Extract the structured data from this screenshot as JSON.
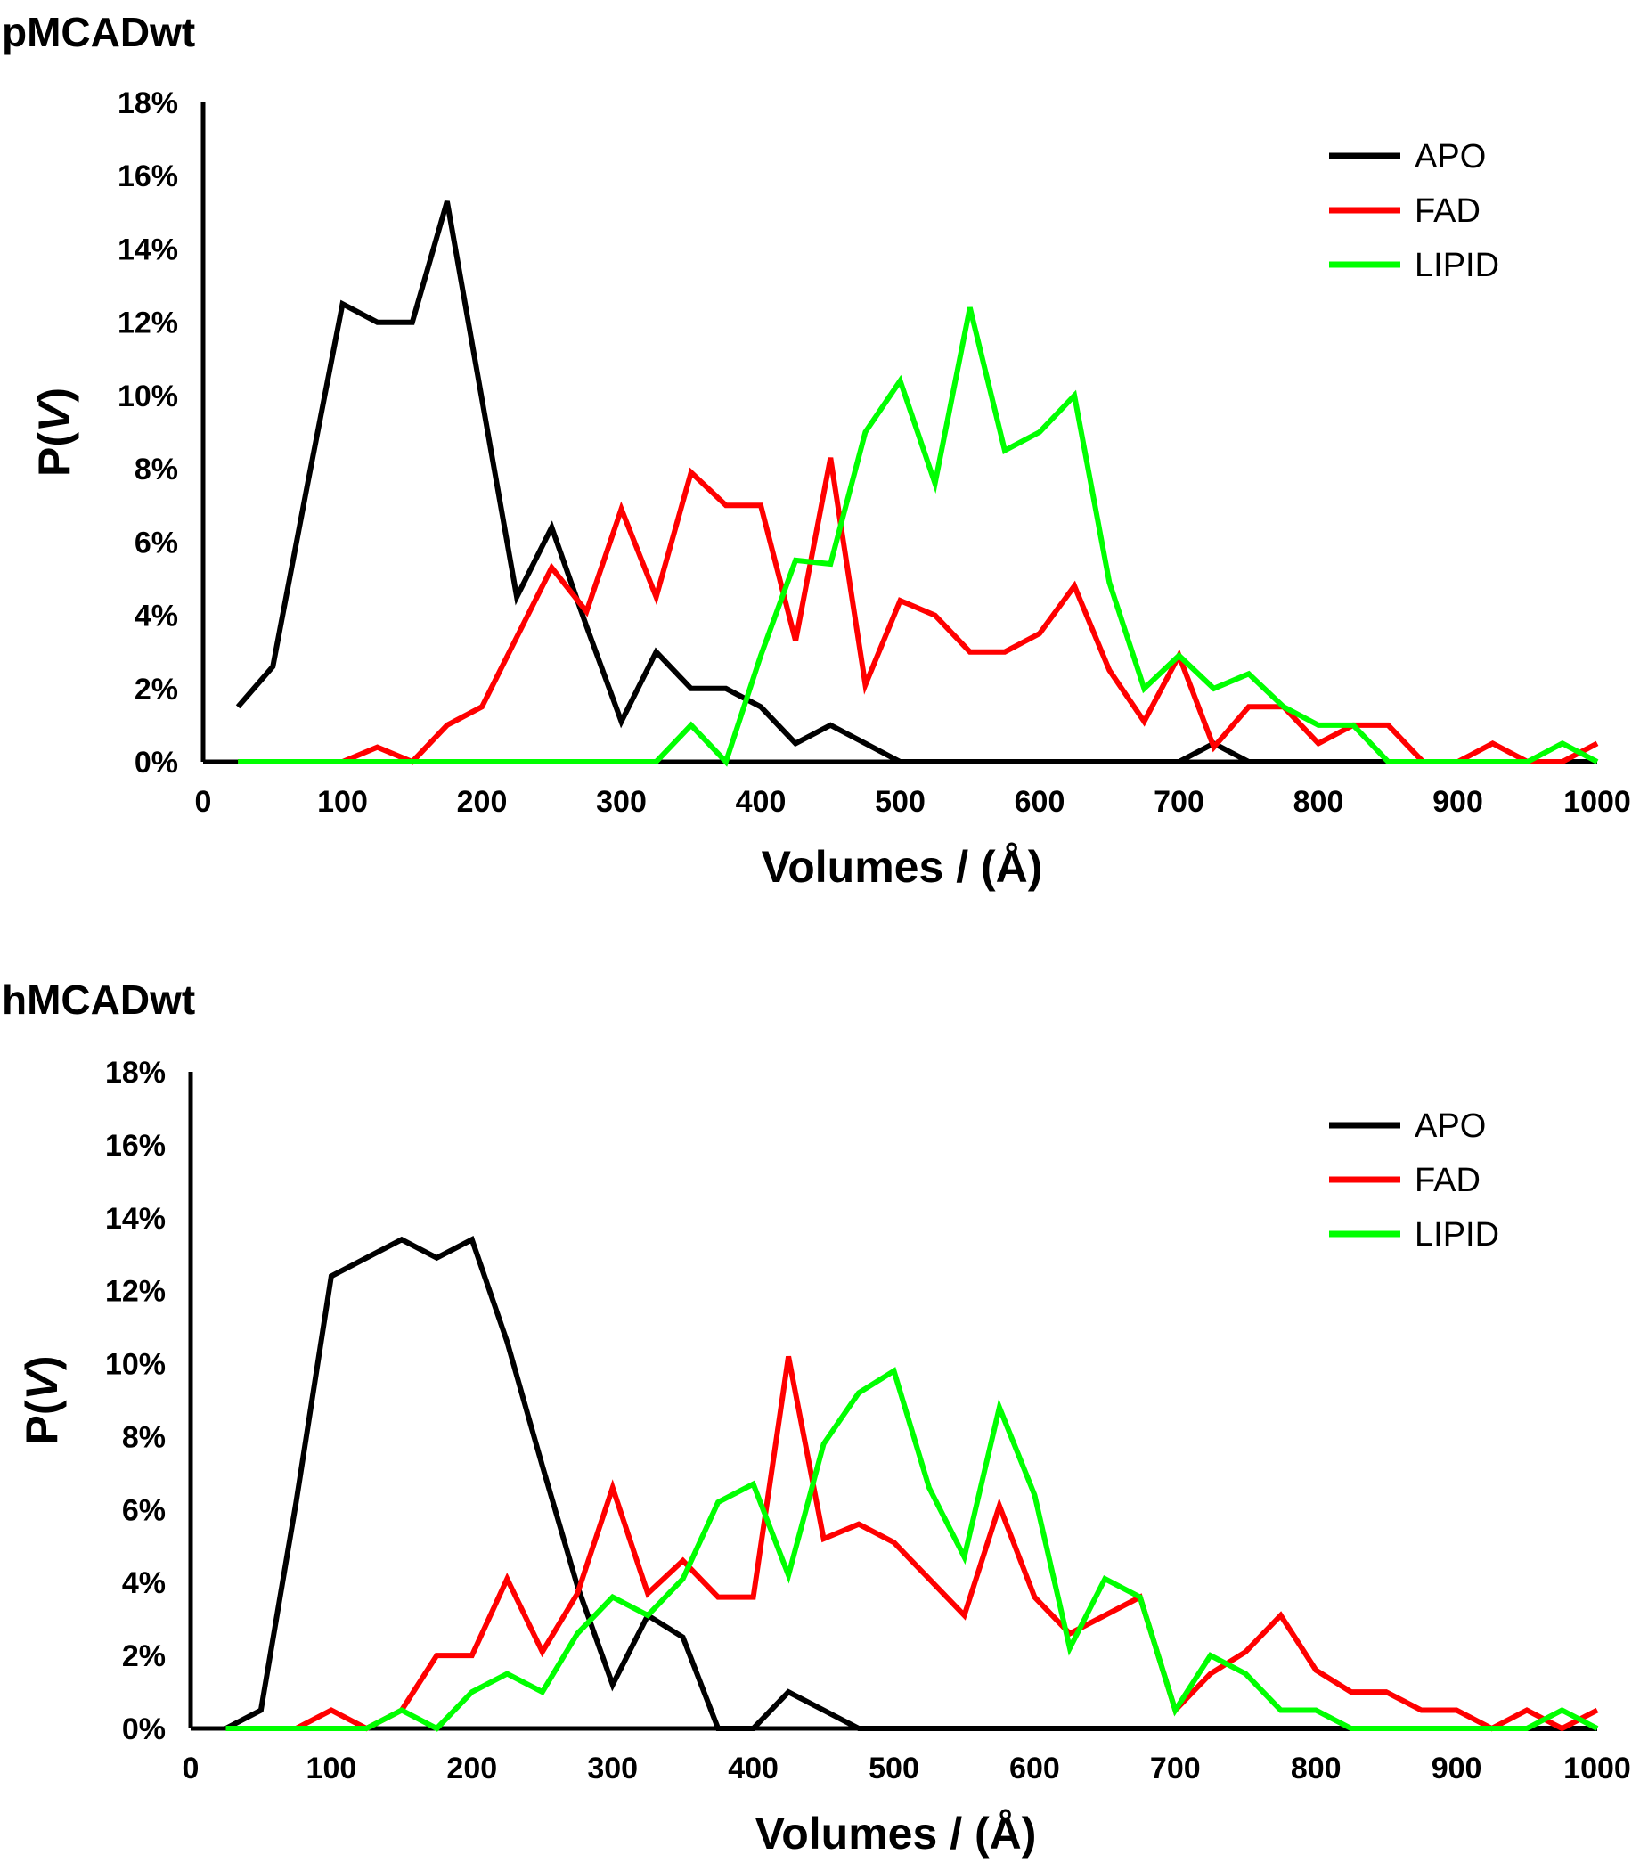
{
  "colors": {
    "APO": "#000000",
    "FAD": "#ff0000",
    "LIPID": "#00ff00"
  },
  "chart_data": [
    {
      "type": "line",
      "title": "pMCADwt",
      "xlabel": "Volumes / (Å)",
      "ylabel_prefix": "P(",
      "ylabel_var": "V",
      "ylabel_suffix": ")",
      "xlim": [
        0,
        1000
      ],
      "ylim": [
        0,
        18
      ],
      "xticks": [
        0,
        100,
        200,
        300,
        400,
        500,
        600,
        700,
        800,
        900,
        1000
      ],
      "yticks": [
        0,
        2,
        4,
        6,
        8,
        10,
        12,
        14,
        16,
        18
      ],
      "ytick_labels": [
        "0%",
        "2%",
        "4%",
        "6%",
        "8%",
        "10%",
        "12%",
        "14%",
        "16%",
        "18%"
      ],
      "xtick_labels": [
        "0",
        "100",
        "200",
        "300",
        "400",
        "500",
        "600",
        "700",
        "800",
        "900",
        "1000"
      ],
      "legend_position": "top-right",
      "grid": false,
      "series": [
        {
          "name": "APO",
          "x": [
            25,
            50,
            75,
            100,
            125,
            150,
            175,
            200,
            225,
            250,
            275,
            300,
            325,
            350,
            375,
            400,
            425,
            450,
            475,
            500,
            525,
            550,
            575,
            600,
            625,
            650,
            675,
            700,
            725,
            750,
            775,
            800,
            825,
            850,
            875,
            900,
            925,
            950,
            975,
            1000
          ],
          "y": [
            1.5,
            2.6,
            7.6,
            12.5,
            12.0,
            12.0,
            15.3,
            9.9,
            4.5,
            6.4,
            3.7,
            1.1,
            3.0,
            2.0,
            2.0,
            1.5,
            0.5,
            1.0,
            0.5,
            0,
            0,
            0,
            0,
            0,
            0,
            0,
            0,
            0,
            0.5,
            0,
            0,
            0,
            0,
            0,
            0,
            0,
            0,
            0,
            0,
            0
          ]
        },
        {
          "name": "FAD",
          "x": [
            25,
            50,
            75,
            100,
            125,
            150,
            175,
            200,
            225,
            250,
            275,
            300,
            325,
            350,
            375,
            400,
            425,
            450,
            475,
            500,
            525,
            550,
            575,
            600,
            625,
            650,
            675,
            700,
            725,
            750,
            775,
            800,
            825,
            850,
            875,
            900,
            925,
            950,
            975,
            1000
          ],
          "y": [
            0,
            0,
            0,
            0,
            0.4,
            0,
            1.0,
            1.5,
            3.4,
            5.3,
            4.1,
            6.9,
            4.5,
            7.9,
            7.0,
            7.0,
            3.3,
            8.3,
            2.1,
            4.4,
            4.0,
            3.0,
            3.0,
            3.5,
            4.8,
            2.5,
            1.1,
            2.9,
            0.4,
            1.5,
            1.5,
            0.5,
            1.0,
            1.0,
            0,
            0,
            0.5,
            0,
            0,
            0.5
          ]
        },
        {
          "name": "LIPID",
          "x": [
            25,
            50,
            75,
            100,
            125,
            150,
            175,
            200,
            225,
            250,
            275,
            300,
            325,
            350,
            375,
            400,
            425,
            450,
            475,
            500,
            525,
            550,
            575,
            600,
            625,
            650,
            675,
            700,
            725,
            750,
            775,
            800,
            825,
            850,
            875,
            900,
            925,
            950,
            975,
            1000
          ],
          "y": [
            0,
            0,
            0,
            0,
            0,
            0,
            0,
            0,
            0,
            0,
            0,
            0,
            0,
            1.0,
            0,
            2.9,
            5.5,
            5.4,
            9.0,
            10.4,
            7.6,
            12.4,
            8.5,
            9.0,
            10.0,
            4.9,
            2.0,
            2.9,
            2.0,
            2.4,
            1.5,
            1.0,
            1.0,
            0,
            0,
            0,
            0,
            0,
            0.5,
            0
          ]
        }
      ]
    },
    {
      "type": "line",
      "title": "hMCADwt",
      "xlabel": "Volumes / (Å)",
      "ylabel_prefix": "P(",
      "ylabel_var": "V",
      "ylabel_suffix": ")",
      "xlim": [
        0,
        1000
      ],
      "ylim": [
        0,
        18
      ],
      "xticks": [
        0,
        100,
        200,
        300,
        400,
        500,
        600,
        700,
        800,
        900,
        1000
      ],
      "yticks": [
        0,
        2,
        4,
        6,
        8,
        10,
        12,
        14,
        16,
        18
      ],
      "ytick_labels": [
        "0%",
        "2%",
        "4%",
        "6%",
        "8%",
        "10%",
        "12%",
        "14%",
        "16%",
        "18%"
      ],
      "xtick_labels": [
        "0",
        "100",
        "200",
        "300",
        "400",
        "500",
        "600",
        "700",
        "800",
        "900",
        "1000"
      ],
      "legend_position": "top-right",
      "grid": false,
      "series": [
        {
          "name": "APO",
          "x": [
            25,
            50,
            75,
            100,
            125,
            150,
            175,
            200,
            225,
            250,
            275,
            300,
            325,
            350,
            375,
            400,
            425,
            450,
            475,
            500,
            525,
            550,
            575,
            600,
            625,
            650,
            675,
            700,
            725,
            750,
            775,
            800,
            825,
            850,
            875,
            900,
            925,
            950,
            975,
            1000
          ],
          "y": [
            0,
            0.5,
            6.2,
            12.4,
            12.9,
            13.4,
            12.9,
            13.4,
            10.6,
            7.2,
            3.9,
            1.2,
            3.1,
            2.5,
            0,
            0,
            1.0,
            0.5,
            0,
            0,
            0,
            0,
            0,
            0,
            0,
            0,
            0,
            0,
            0,
            0,
            0,
            0,
            0,
            0,
            0,
            0,
            0,
            0,
            0,
            0
          ]
        },
        {
          "name": "FAD",
          "x": [
            25,
            50,
            75,
            100,
            125,
            150,
            175,
            200,
            225,
            250,
            275,
            300,
            325,
            350,
            375,
            400,
            425,
            450,
            475,
            500,
            525,
            550,
            575,
            600,
            625,
            650,
            675,
            700,
            725,
            750,
            775,
            800,
            825,
            850,
            875,
            900,
            925,
            950,
            975,
            1000
          ],
          "y": [
            0,
            0,
            0,
            0.5,
            0,
            0.5,
            2.0,
            2.0,
            4.1,
            2.1,
            3.7,
            6.6,
            3.7,
            4.6,
            3.6,
            3.6,
            10.2,
            5.2,
            5.6,
            5.1,
            4.1,
            3.1,
            6.1,
            3.6,
            2.6,
            3.1,
            3.6,
            0.5,
            1.5,
            2.1,
            3.1,
            1.6,
            1.0,
            1.0,
            0.5,
            0.5,
            0,
            0.5,
            0,
            0.5
          ]
        },
        {
          "name": "LIPID",
          "x": [
            25,
            50,
            75,
            100,
            125,
            150,
            175,
            200,
            225,
            250,
            275,
            300,
            325,
            350,
            375,
            400,
            425,
            450,
            475,
            500,
            525,
            550,
            575,
            600,
            625,
            650,
            675,
            700,
            725,
            750,
            775,
            800,
            825,
            850,
            875,
            900,
            925,
            950,
            975,
            1000
          ],
          "y": [
            0,
            0,
            0,
            0,
            0,
            0.5,
            0,
            1.0,
            1.5,
            1.0,
            2.6,
            3.6,
            3.1,
            4.1,
            6.2,
            6.7,
            4.2,
            7.8,
            9.2,
            9.8,
            6.6,
            4.7,
            8.8,
            6.4,
            2.2,
            4.1,
            3.6,
            0.5,
            2.0,
            1.5,
            0.5,
            0.5,
            0,
            0,
            0,
            0,
            0,
            0,
            0.5,
            0
          ]
        }
      ]
    }
  ]
}
